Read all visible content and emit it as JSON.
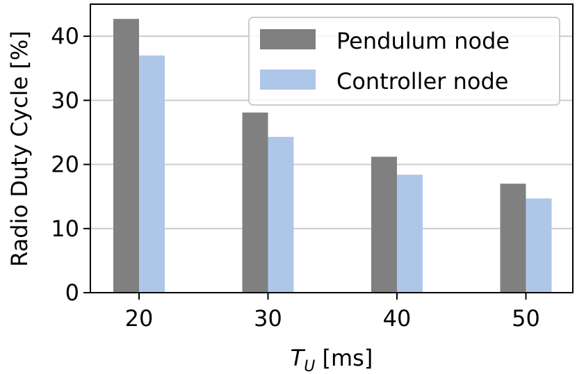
{
  "chart_data": {
    "type": "bar",
    "categories": [
      "20",
      "30",
      "40",
      "50"
    ],
    "series": [
      {
        "name": "Pendulum node",
        "values": [
          42.7,
          28.1,
          21.2,
          17.0
        ],
        "color": "#808080"
      },
      {
        "name": "Controller node",
        "values": [
          37.0,
          24.3,
          18.4,
          14.7
        ],
        "color": "#aec7e8"
      }
    ],
    "xlabel": {
      "symbol": "T",
      "subscript": "U",
      "unit": " [ms]"
    },
    "ylabel": "Radio Duty Cycle [%]",
    "ylim": [
      0,
      45
    ],
    "yticks": [
      "0",
      "10",
      "20",
      "30",
      "40"
    ],
    "grid": "horizontal",
    "legend_position": "top-right"
  }
}
